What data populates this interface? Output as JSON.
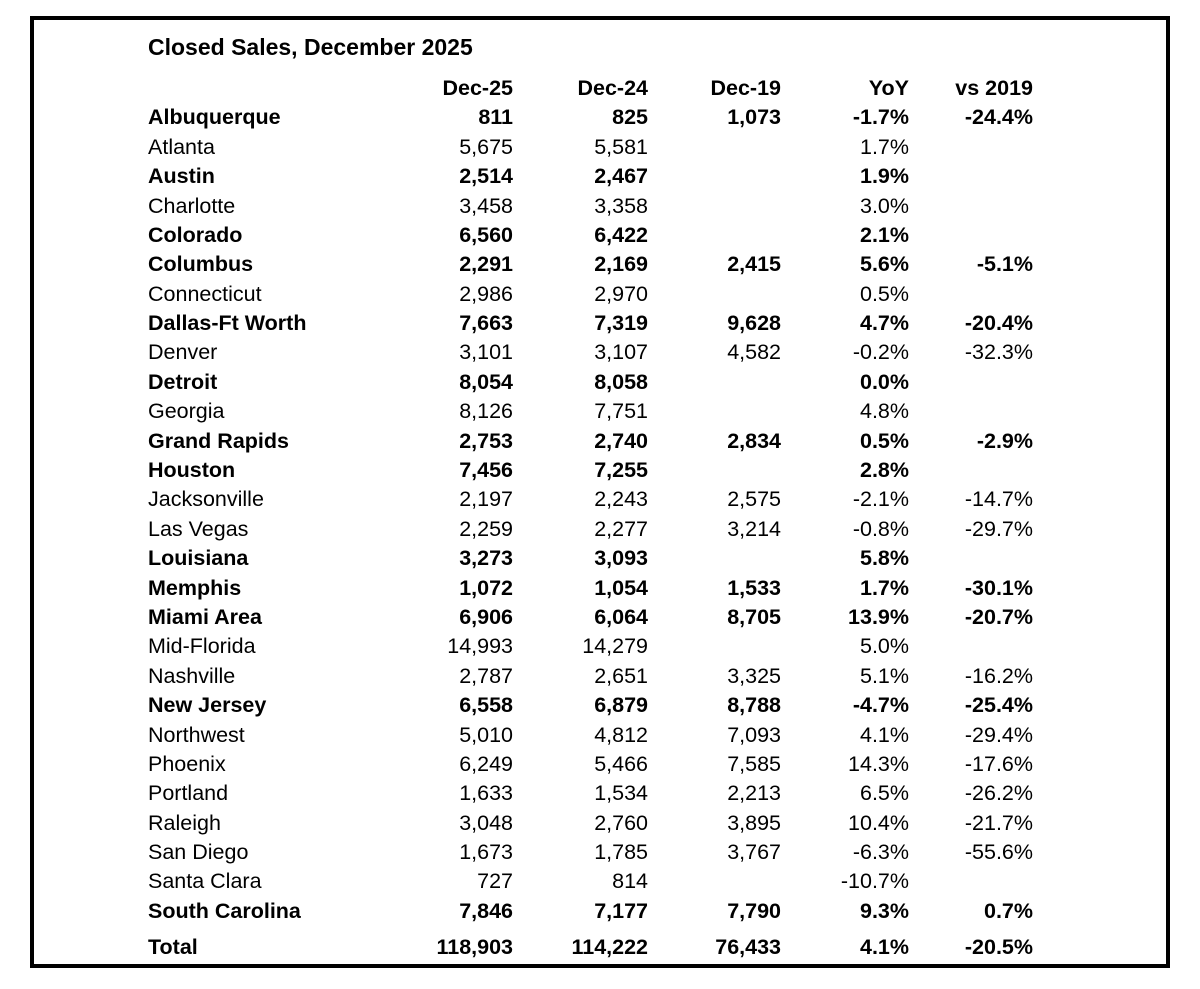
{
  "colors": {
    "text": "#000000",
    "background": "#ffffff",
    "border": "#000000"
  },
  "chart_data": {
    "type": "table",
    "title": "Closed Sales, December 2025",
    "columns": [
      "Dec-25",
      "Dec-24",
      "Dec-19",
      "YoY",
      "vs 2019"
    ],
    "rows": [
      {
        "city": "Albuquerque",
        "bold": true,
        "values": [
          "811",
          "825",
          "1,073",
          "-1.7%",
          "-24.4%"
        ]
      },
      {
        "city": "Atlanta",
        "bold": false,
        "values": [
          "5,675",
          "5,581",
          "",
          "1.7%",
          ""
        ]
      },
      {
        "city": "Austin",
        "bold": true,
        "values": [
          "2,514",
          "2,467",
          "",
          "1.9%",
          ""
        ]
      },
      {
        "city": "Charlotte",
        "bold": false,
        "values": [
          "3,458",
          "3,358",
          "",
          "3.0%",
          ""
        ]
      },
      {
        "city": "Colorado",
        "bold": true,
        "values": [
          "6,560",
          "6,422",
          "",
          "2.1%",
          ""
        ]
      },
      {
        "city": "Columbus",
        "bold": true,
        "values": [
          "2,291",
          "2,169",
          "2,415",
          "5.6%",
          "-5.1%"
        ]
      },
      {
        "city": "Connecticut",
        "bold": false,
        "values": [
          "2,986",
          "2,970",
          "",
          "0.5%",
          ""
        ]
      },
      {
        "city": "Dallas-Ft Worth",
        "bold": true,
        "values": [
          "7,663",
          "7,319",
          "9,628",
          "4.7%",
          "-20.4%"
        ]
      },
      {
        "city": "Denver",
        "bold": false,
        "values": [
          "3,101",
          "3,107",
          "4,582",
          "-0.2%",
          "-32.3%"
        ]
      },
      {
        "city": "Detroit",
        "bold": true,
        "values": [
          "8,054",
          "8,058",
          "",
          "0.0%",
          ""
        ]
      },
      {
        "city": "Georgia",
        "bold": false,
        "values": [
          "8,126",
          "7,751",
          "",
          "4.8%",
          ""
        ]
      },
      {
        "city": "Grand Rapids",
        "bold": true,
        "values": [
          "2,753",
          "2,740",
          "2,834",
          "0.5%",
          "-2.9%"
        ]
      },
      {
        "city": "Houston",
        "bold": true,
        "values": [
          "7,456",
          "7,255",
          "",
          "2.8%",
          ""
        ]
      },
      {
        "city": "Jacksonville",
        "bold": false,
        "values": [
          "2,197",
          "2,243",
          "2,575",
          "-2.1%",
          "-14.7%"
        ]
      },
      {
        "city": "Las Vegas",
        "bold": false,
        "values": [
          "2,259",
          "2,277",
          "3,214",
          "-0.8%",
          "-29.7%"
        ]
      },
      {
        "city": "Louisiana",
        "bold": true,
        "values": [
          "3,273",
          "3,093",
          "",
          "5.8%",
          ""
        ]
      },
      {
        "city": "Memphis",
        "bold": true,
        "values": [
          "1,072",
          "1,054",
          "1,533",
          "1.7%",
          "-30.1%"
        ]
      },
      {
        "city": "Miami Area",
        "bold": true,
        "values": [
          "6,906",
          "6,064",
          "8,705",
          "13.9%",
          "-20.7%"
        ]
      },
      {
        "city": "Mid-Florida",
        "bold": false,
        "values": [
          "14,993",
          "14,279",
          "",
          "5.0%",
          ""
        ]
      },
      {
        "city": "Nashville",
        "bold": false,
        "values": [
          "2,787",
          "2,651",
          "3,325",
          "5.1%",
          "-16.2%"
        ]
      },
      {
        "city": "New Jersey",
        "bold": true,
        "values": [
          "6,558",
          "6,879",
          "8,788",
          "-4.7%",
          "-25.4%"
        ]
      },
      {
        "city": "Northwest",
        "bold": false,
        "values": [
          "5,010",
          "4,812",
          "7,093",
          "4.1%",
          "-29.4%"
        ]
      },
      {
        "city": "Phoenix",
        "bold": false,
        "values": [
          "6,249",
          "5,466",
          "7,585",
          "14.3%",
          "-17.6%"
        ]
      },
      {
        "city": "Portland",
        "bold": false,
        "values": [
          "1,633",
          "1,534",
          "2,213",
          "6.5%",
          "-26.2%"
        ]
      },
      {
        "city": "Raleigh",
        "bold": false,
        "values": [
          "3,048",
          "2,760",
          "3,895",
          "10.4%",
          "-21.7%"
        ]
      },
      {
        "city": "San Diego",
        "bold": false,
        "values": [
          "1,673",
          "1,785",
          "3,767",
          "-6.3%",
          "-55.6%"
        ]
      },
      {
        "city": "Santa Clara",
        "bold": false,
        "values": [
          "727",
          "814",
          "",
          "-10.7%",
          ""
        ]
      },
      {
        "city": "South Carolina",
        "bold": true,
        "values": [
          "7,846",
          "7,177",
          "7,790",
          "9.3%",
          "0.7%"
        ]
      }
    ],
    "total": {
      "city": "Total",
      "values": [
        "118,903",
        "114,222",
        "76,433",
        "4.1%",
        "-20.5%"
      ]
    },
    "layout": {
      "grid": false,
      "city_column_align": "left",
      "value_columns_align": "right"
    }
  }
}
